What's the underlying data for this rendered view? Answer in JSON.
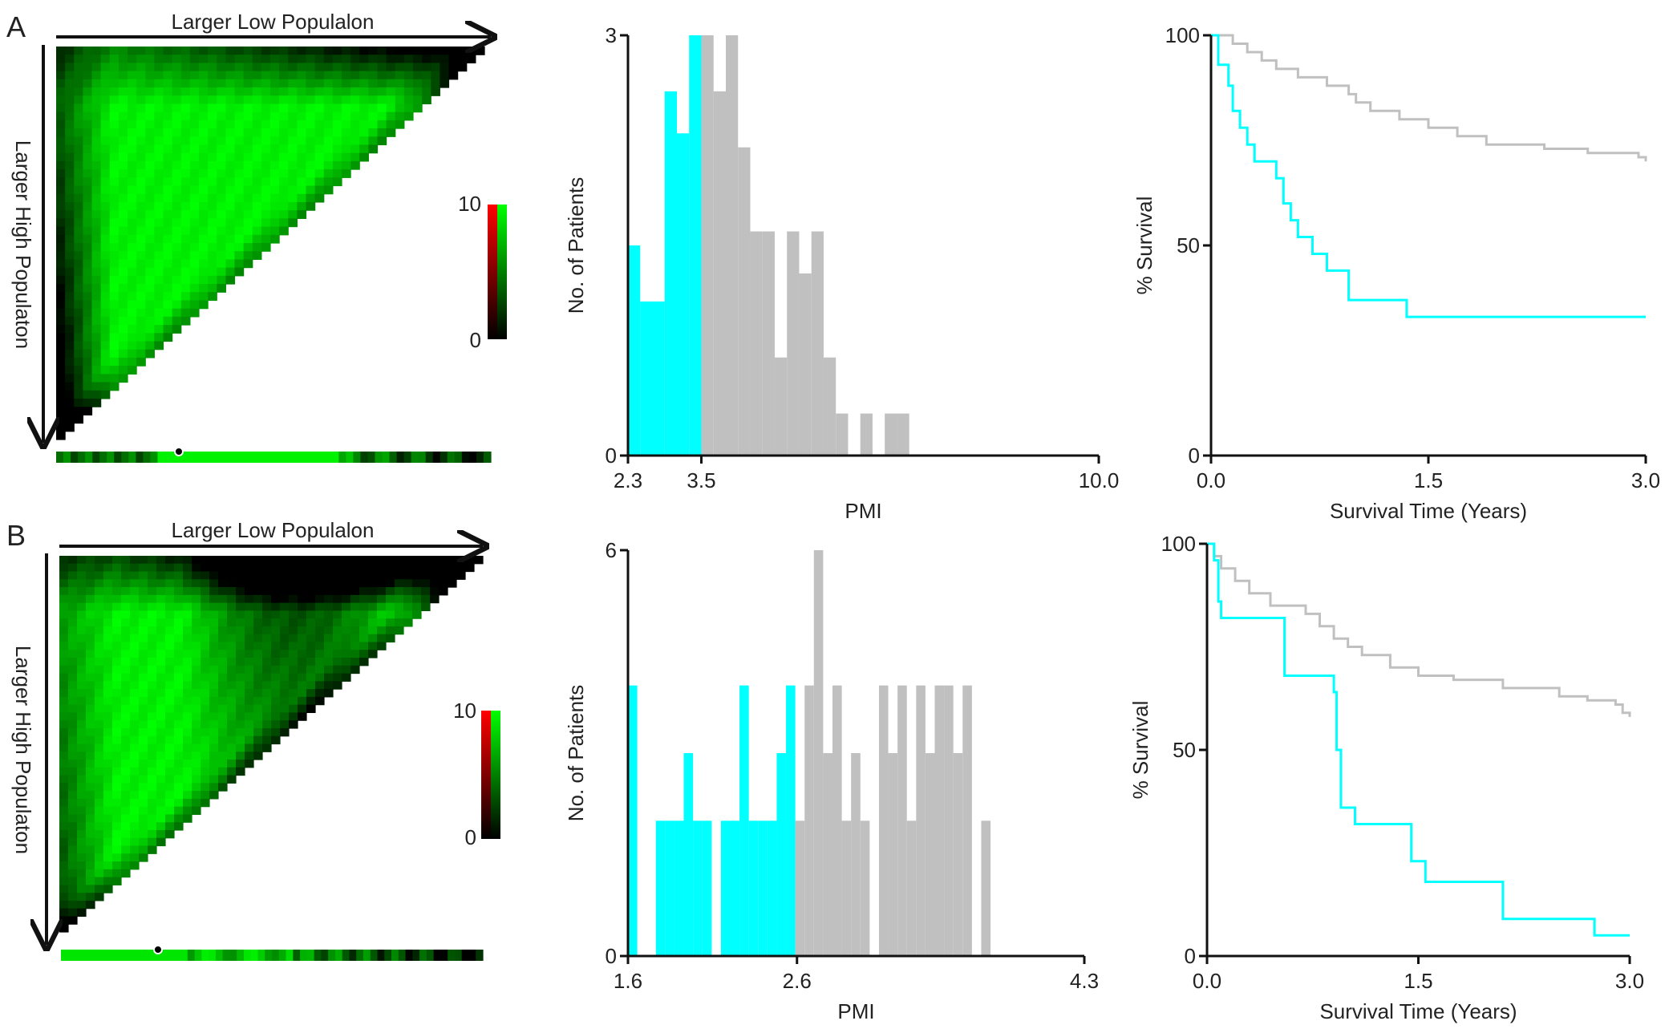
{
  "colors": {
    "low_group": "#00ffff",
    "high_group": "#c0c0c0",
    "heat_high": "#00ff00",
    "heat_mid": "#ff0000",
    "heat_low": "#000000",
    "axis": "#111111"
  },
  "panels": [
    {
      "label": "A",
      "heatmap": {
        "x_label": "Larger Low Populalon",
        "y_label": "Larger High Populaton",
        "colorbar_max": "10",
        "colorbar_min": "0"
      }
    },
    {
      "label": "B",
      "heatmap": {
        "x_label": "Larger Low Populalon",
        "y_label": "Larger High Populaton",
        "colorbar_max": "10",
        "colorbar_min": "0"
      }
    }
  ],
  "chart_data": [
    {
      "type": "heatmap",
      "panel": "A",
      "x_label": "Larger Low Populalon",
      "y_label": "Larger High Populaton",
      "colorbar_range": [
        0,
        10
      ],
      "colorbar_colors": [
        "#000000",
        "#ff0000",
        "#00ff00"
      ]
    },
    {
      "type": "bar",
      "panel": "A",
      "xlabel": "PMI",
      "ylabel": "No. of Patients",
      "xlim": [
        2.3,
        10.0
      ],
      "ylim": [
        0,
        3
      ],
      "x_ticks": [
        "2.3",
        "3.5",
        "10.0"
      ],
      "y_ticks": [
        "0",
        "3"
      ],
      "cutoff": 3.5,
      "bin_width": 0.2,
      "bin_starts": [
        2.3,
        2.5,
        2.7,
        2.9,
        3.1,
        3.3,
        3.5,
        3.7,
        3.9,
        4.1,
        4.3,
        4.5,
        4.7,
        4.9,
        5.1,
        5.3,
        5.5,
        5.7,
        5.9,
        6.1,
        6.3,
        6.5,
        6.7,
        6.9,
        7.1,
        7.3,
        7.5,
        7.7,
        7.9,
        8.1,
        8.3,
        8.5
      ],
      "counts": [
        1.5,
        1.1,
        1.1,
        2.6,
        2.3,
        3,
        3,
        2.6,
        3,
        2.2,
        1.6,
        1.6,
        0.7,
        1.6,
        1.3,
        1.6,
        0.7,
        0.3,
        0,
        0.3,
        0,
        0.3,
        0.3,
        0,
        0,
        0,
        0,
        0,
        0,
        0,
        0,
        0
      ],
      "low_group_bins": 6
    },
    {
      "type": "line",
      "panel": "A",
      "xlabel": "Survival Time (Years)",
      "ylabel": "% Survival",
      "xlim": [
        0,
        3.0
      ],
      "ylim": [
        0,
        100
      ],
      "x_ticks": [
        "0.0",
        "1.5",
        "3.0"
      ],
      "y_ticks": [
        "0",
        "50",
        "100"
      ],
      "series": [
        {
          "color": "#c0c0c0",
          "x": [
            0,
            0.1,
            0.15,
            0.25,
            0.35,
            0.45,
            0.6,
            0.8,
            0.95,
            1.0,
            1.1,
            1.3,
            1.5,
            1.7,
            1.9,
            2.3,
            2.6,
            2.95,
            3.0
          ],
          "y": [
            100,
            100,
            98,
            96,
            94,
            92,
            90,
            88,
            86,
            84,
            82,
            80,
            78,
            76,
            74,
            73,
            72,
            71,
            70
          ]
        },
        {
          "color": "#00ffff",
          "x": [
            0,
            0.05,
            0.08,
            0.12,
            0.15,
            0.2,
            0.25,
            0.3,
            0.4,
            0.45,
            0.5,
            0.55,
            0.6,
            0.7,
            0.8,
            0.95,
            1.1,
            1.35,
            3.0
          ],
          "y": [
            100,
            93,
            93,
            88,
            82,
            78,
            74,
            70,
            70,
            66,
            60,
            56,
            52,
            48,
            44,
            37,
            37,
            33,
            33
          ]
        }
      ]
    },
    {
      "type": "heatmap",
      "panel": "B",
      "x_label": "Larger Low Populalon",
      "y_label": "Larger High Populaton",
      "colorbar_range": [
        0,
        10
      ],
      "colorbar_colors": [
        "#000000",
        "#ff0000",
        "#00ff00"
      ]
    },
    {
      "type": "bar",
      "panel": "B",
      "xlabel": "PMI",
      "ylabel": "No. of Patients",
      "xlim": [
        1.6,
        4.3
      ],
      "ylim": [
        0,
        6
      ],
      "x_ticks": [
        "1.6",
        "2.6",
        "4.3"
      ],
      "y_ticks": [
        "0",
        "6"
      ],
      "cutoff": 2.6,
      "bin_width": 0.055,
      "bin_starts": [
        1.6,
        1.655,
        1.71,
        1.765,
        1.82,
        1.875,
        1.93,
        1.985,
        2.04,
        2.095,
        2.15,
        2.205,
        2.26,
        2.315,
        2.37,
        2.425,
        2.48,
        2.535,
        2.59,
        2.645,
        2.7,
        2.755,
        2.81,
        2.865,
        2.92,
        2.975,
        3.03,
        3.085,
        3.14,
        3.195,
        3.25,
        3.305,
        3.36,
        3.415,
        3.47,
        3.525,
        3.58,
        3.635,
        3.69,
        3.745,
        3.8,
        3.855,
        3.91,
        3.965,
        4.02,
        4.075,
        4.13,
        4.185,
        4.24
      ],
      "counts": [
        4,
        0,
        0,
        2,
        2,
        2,
        3,
        2,
        2,
        0,
        2,
        2,
        4,
        2,
        2,
        2,
        3,
        4,
        2,
        4,
        6,
        3,
        4,
        2,
        3,
        2,
        0,
        4,
        3,
        4,
        2,
        4,
        3,
        4,
        4,
        3,
        4,
        0,
        2,
        0,
        0,
        0,
        0,
        0,
        0,
        0,
        0,
        0,
        0
      ],
      "low_group_bins": 18
    },
    {
      "type": "line",
      "panel": "B",
      "xlabel": "Survival Time (Years)",
      "ylabel": "% Survival",
      "xlim": [
        0,
        3.0
      ],
      "ylim": [
        0,
        100
      ],
      "x_ticks": [
        "0.0",
        "1.5",
        "3.0"
      ],
      "y_ticks": [
        "0",
        "50",
        "100"
      ],
      "series": [
        {
          "color": "#c0c0c0",
          "x": [
            0,
            0.05,
            0.1,
            0.2,
            0.3,
            0.45,
            0.7,
            0.8,
            0.9,
            1.0,
            1.1,
            1.3,
            1.5,
            1.75,
            2.1,
            2.5,
            2.7,
            2.9,
            2.95,
            3.0
          ],
          "y": [
            100,
            97,
            94,
            91,
            88,
            85,
            83,
            80,
            77,
            75,
            73,
            70,
            68,
            67,
            65,
            63,
            62,
            61,
            59,
            58
          ]
        },
        {
          "color": "#00ffff",
          "x": [
            0,
            0.05,
            0.08,
            0.1,
            0.5,
            0.55,
            0.85,
            0.9,
            0.92,
            0.95,
            1.05,
            1.3,
            1.45,
            1.55,
            1.9,
            2.1,
            2.4,
            2.75,
            3.0
          ],
          "y": [
            100,
            96,
            86,
            82,
            82,
            68,
            68,
            64,
            50,
            36,
            32,
            32,
            23,
            18,
            18,
            9,
            9,
            5,
            5
          ]
        }
      ]
    }
  ]
}
